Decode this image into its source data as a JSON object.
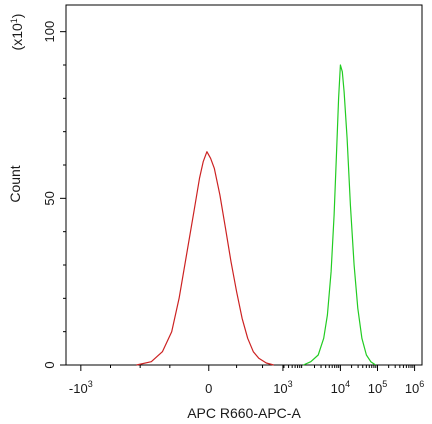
{
  "chart_data": {
    "type": "area",
    "title": "",
    "xlabel": "APC R660-APC-A",
    "ylabel": "Count",
    "y_multiplier_label": "(x10",
    "y_multiplier_exp": "1",
    "y_multiplier_close": ")",
    "xscale": "biexponential",
    "xlim_log10": [
      -3.4,
      6.2
    ],
    "ylim": [
      0,
      108
    ],
    "x_ticks": [
      {
        "base": "-10",
        "exp": "3",
        "log_pos": -3
      },
      {
        "base": "0",
        "exp": "",
        "log_pos": 0.45
      },
      {
        "base": "10",
        "exp": "3",
        "log_pos": 2.45
      },
      {
        "base": "10",
        "exp": "4",
        "log_pos": 4.0
      },
      {
        "base": "10",
        "exp": "5",
        "log_pos": 5.0
      },
      {
        "base": "10",
        "exp": "6",
        "log_pos": 6.0
      }
    ],
    "y_ticks": [
      {
        "label": "0",
        "value": 0
      },
      {
        "label": "50",
        "value": 50
      },
      {
        "label": "100",
        "value": 100
      }
    ],
    "grid": false,
    "series": [
      {
        "color": "#cc2222",
        "fill": "none",
        "points": [
          [
            -1.5,
            0
          ],
          [
            -1.1,
            1
          ],
          [
            -0.8,
            4
          ],
          [
            -0.55,
            10
          ],
          [
            -0.35,
            20
          ],
          [
            -0.15,
            33
          ],
          [
            0.05,
            46
          ],
          [
            0.2,
            56
          ],
          [
            0.3,
            61
          ],
          [
            0.4,
            64
          ],
          [
            0.5,
            62
          ],
          [
            0.6,
            59
          ],
          [
            0.75,
            51
          ],
          [
            0.9,
            41
          ],
          [
            1.05,
            31
          ],
          [
            1.2,
            22
          ],
          [
            1.35,
            14
          ],
          [
            1.5,
            8
          ],
          [
            1.65,
            4
          ],
          [
            1.8,
            2
          ],
          [
            2.0,
            0.6
          ],
          [
            2.2,
            0
          ]
        ]
      },
      {
        "color": "#22cc22",
        "fill": "none",
        "points": [
          [
            3.0,
            0
          ],
          [
            3.2,
            1
          ],
          [
            3.4,
            3
          ],
          [
            3.55,
            8
          ],
          [
            3.65,
            15
          ],
          [
            3.75,
            28
          ],
          [
            3.83,
            45
          ],
          [
            3.9,
            65
          ],
          [
            3.95,
            80
          ],
          [
            4.0,
            90
          ],
          [
            4.05,
            88
          ],
          [
            4.1,
            82
          ],
          [
            4.18,
            68
          ],
          [
            4.27,
            48
          ],
          [
            4.37,
            30
          ],
          [
            4.47,
            17
          ],
          [
            4.58,
            8
          ],
          [
            4.7,
            3
          ],
          [
            4.82,
            1
          ],
          [
            4.95,
            0
          ]
        ]
      }
    ]
  }
}
